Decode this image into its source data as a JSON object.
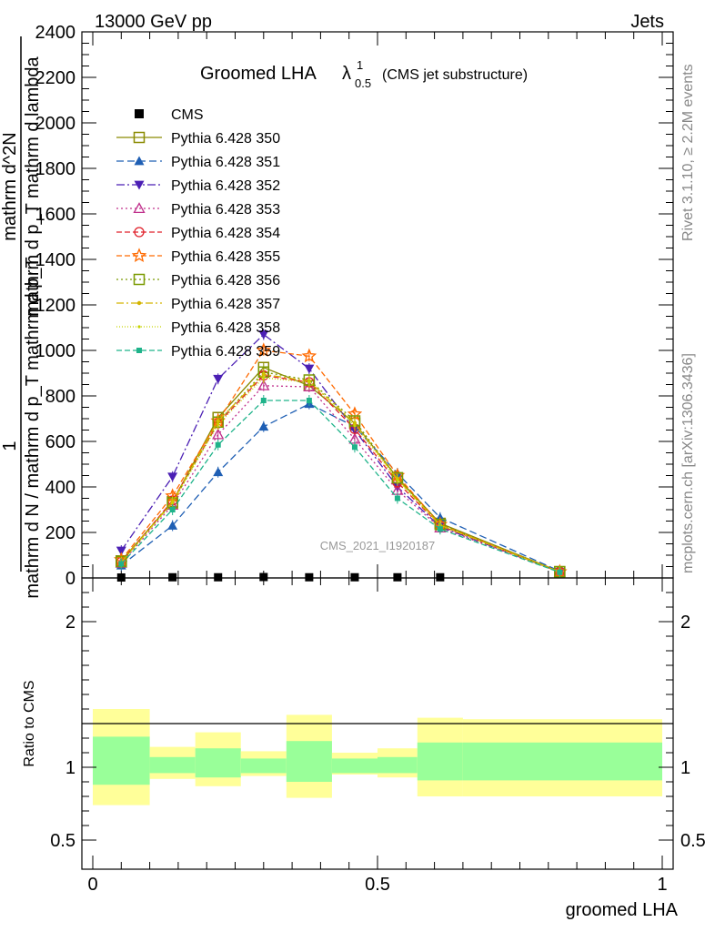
{
  "header": {
    "left": "13000 GeV pp",
    "right": "Jets"
  },
  "side_labels": {
    "rivet": "Rivet 3.1.10, ≥ 2.2M events",
    "mcplots": "mcplots.cern.ch [arXiv:1306.3436]"
  },
  "main_plot": {
    "title_main": "Groomed LHA",
    "title_symbol": "λ",
    "title_sup": "1",
    "title_sub": "0.5",
    "title_note": "(CMS jet substructure)",
    "ylabel_num": "1",
    "ylabel_den": "mathrm d N / mathrm d p_T mathrm d p_T",
    "ylabel_num2": "mathrm d^2N",
    "ylabel_den2": "mathrm d p_T mathrm d lambda",
    "watermark": "CMS_2021_I1920187"
  },
  "ratio_plot": {
    "ylabel": "Ratio to CMS",
    "xlabel": "groomed LHA"
  },
  "chart_data": {
    "type": "line",
    "x_range": [
      0,
      1
    ],
    "ylim": [
      0,
      2400
    ],
    "yticks": [
      "0",
      "200",
      "400",
      "600",
      "800",
      "1000",
      "1200",
      "1400",
      "1600",
      "1800",
      "2000",
      "2200",
      "2400"
    ],
    "xticks": [
      "0",
      "0.5",
      "1"
    ],
    "ratio_ylim": [
      0.3,
      2.3
    ],
    "ratio_yticks": [
      "0.5",
      "1",
      "2"
    ],
    "legend_position": "top-left",
    "bin_edges": [
      0,
      0.1,
      0.18,
      0.26,
      0.34,
      0.42,
      0.5,
      0.57,
      1.0
    ],
    "x": [
      0.05,
      0.14,
      0.22,
      0.3,
      0.38,
      0.46,
      0.535,
      0.61,
      0.82
    ],
    "data": {
      "name": "CMS",
      "values": [
        2,
        3,
        3,
        4,
        3,
        3,
        3,
        3,
        null
      ]
    },
    "ratio_band_inner": [
      [
        0.88,
        1.21
      ],
      [
        0.96,
        1.07
      ],
      [
        0.93,
        1.13
      ],
      [
        0.96,
        1.06
      ],
      [
        0.9,
        1.18
      ],
      [
        0.96,
        1.06
      ],
      [
        0.96,
        1.07
      ],
      [
        0.91,
        1.17
      ],
      [
        0.91,
        1.17
      ]
    ],
    "ratio_band_outer": [
      [
        0.74,
        1.4
      ],
      [
        0.92,
        1.14
      ],
      [
        0.87,
        1.24
      ],
      [
        0.94,
        1.11
      ],
      [
        0.79,
        1.36
      ],
      [
        0.95,
        1.1
      ],
      [
        0.93,
        1.13
      ],
      [
        0.8,
        1.34
      ],
      [
        0.8,
        1.33
      ]
    ],
    "series": [
      {
        "name": "Pythia 6.428 350",
        "color": "#8a8a00",
        "dash": "",
        "marker": "square-open",
        "values": [
          75,
          335,
          705,
          925,
          845,
          680,
          440,
          240,
          28
        ]
      },
      {
        "name": "Pythia 6.428 351",
        "color": "#1f5fb4",
        "dash": "8,4",
        "marker": "triangle-up-filled",
        "values": [
          55,
          230,
          465,
          665,
          765,
          665,
          460,
          265,
          30
        ]
      },
      {
        "name": "Pythia 6.428 352",
        "color": "#4b1fb4",
        "dash": "9,3,2,3",
        "marker": "triangle-down-filled",
        "values": [
          120,
          445,
          875,
          1070,
          920,
          650,
          400,
          225,
          26
        ]
      },
      {
        "name": "Pythia 6.428 353",
        "color": "#c0308c",
        "dash": "2,3",
        "marker": "triangle-up-open",
        "values": [
          65,
          320,
          630,
          845,
          840,
          610,
          385,
          220,
          26
        ]
      },
      {
        "name": "Pythia 6.428 354",
        "color": "#e0202a",
        "dash": "6,3",
        "marker": "circle-open",
        "values": [
          70,
          340,
          680,
          890,
          860,
          655,
          420,
          230,
          27
        ]
      },
      {
        "name": "Pythia 6.428 355",
        "color": "#ff6a00",
        "dash": "6,3",
        "marker": "star-open",
        "values": [
          80,
          360,
          690,
          1000,
          975,
          720,
          450,
          235,
          27
        ]
      },
      {
        "name": "Pythia 6.428 356",
        "color": "#7a9a00",
        "dash": "2,3",
        "marker": "square-open",
        "values": [
          72,
          330,
          685,
          905,
          870,
          690,
          440,
          235,
          27
        ]
      },
      {
        "name": "Pythia 6.428 357",
        "color": "#d4b400",
        "dash": "8,3,2,3",
        "marker": "dot",
        "values": [
          70,
          335,
          690,
          895,
          865,
          680,
          435,
          232,
          27
        ]
      },
      {
        "name": "Pythia 6.428 358",
        "color": "#c8d400",
        "dash": "1,2",
        "marker": "dot-small",
        "values": [
          68,
          330,
          675,
          880,
          860,
          670,
          430,
          230,
          27
        ]
      },
      {
        "name": "Pythia 6.428 359",
        "color": "#1fb38a",
        "dash": "6,3",
        "marker": "square-small",
        "values": [
          62,
          300,
          585,
          780,
          780,
          575,
          350,
          215,
          25
        ]
      }
    ]
  }
}
